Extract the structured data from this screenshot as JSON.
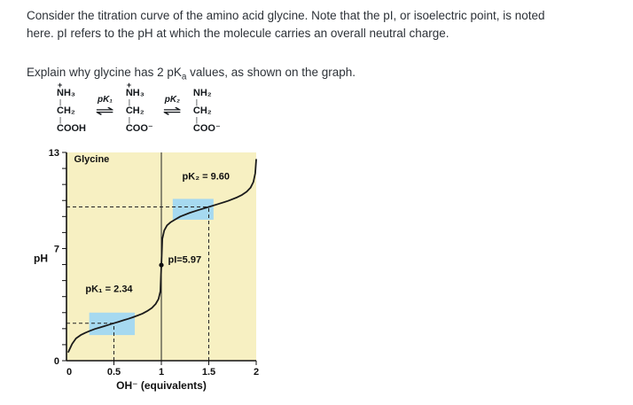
{
  "page": {
    "bg": "#ffffff",
    "text_color": "#2d3238"
  },
  "intro": {
    "paragraph": "Consider the titration curve of the amino acid glycine. Note that the pI, or isoelectric point, is noted here. pI refers to the pH at which the molecule carries an overall neutral charge.",
    "question_pre": "Explain why glycine has 2 pK",
    "question_sub": "a",
    "question_post": " values, as shown on the graph."
  },
  "reaction": {
    "equilibrium_symbol": "⇌",
    "structures": [
      {
        "charge": "+",
        "lines": [
          "NH₃",
          "CH₂",
          "COOH"
        ]
      },
      {
        "charge": "+",
        "lines": [
          "NH₃",
          "CH₂",
          "COO⁻"
        ]
      },
      {
        "charge": "",
        "lines": [
          "NH₂",
          "CH₂",
          "COO⁻"
        ]
      }
    ],
    "arrows": [
      {
        "label": "pK₁"
      },
      {
        "label": "pK₂"
      }
    ]
  },
  "chart_data": {
    "type": "line",
    "title": "Glycine",
    "xlabel": "OH⁻  (equivalents)",
    "ylabel": "pH",
    "xlim": [
      0,
      2
    ],
    "ylim": [
      0,
      13
    ],
    "x_ticks": [
      0,
      0.5,
      1,
      1.5,
      2
    ],
    "x_tick_labels": [
      "0",
      "0.5",
      "1",
      "1.5",
      "2"
    ],
    "y_tick_labels": [
      {
        "value": 0,
        "label": "0"
      },
      {
        "value": 7,
        "label": "7"
      },
      {
        "value": 13,
        "label": "13"
      }
    ],
    "pK1": 2.34,
    "pK2": 9.6,
    "pI": 5.97,
    "bg_color": "#f7f0c2",
    "buffer_region_color": "#a6d9f0",
    "curve_color": "#1b1b1b",
    "curve": [
      [
        0.02,
        0.55
      ],
      [
        0.06,
        1.05
      ],
      [
        0.1,
        1.39
      ],
      [
        0.15,
        1.6
      ],
      [
        0.2,
        1.75
      ],
      [
        0.25,
        1.87
      ],
      [
        0.3,
        1.98
      ],
      [
        0.35,
        2.07
      ],
      [
        0.4,
        2.16
      ],
      [
        0.45,
        2.25
      ],
      [
        0.5,
        2.34
      ],
      [
        0.55,
        2.43
      ],
      [
        0.6,
        2.52
      ],
      [
        0.65,
        2.61
      ],
      [
        0.7,
        2.71
      ],
      [
        0.75,
        2.82
      ],
      [
        0.8,
        2.94
      ],
      [
        0.85,
        3.09
      ],
      [
        0.9,
        3.29
      ],
      [
        0.94,
        3.54
      ],
      [
        0.97,
        3.85
      ],
      [
        0.99,
        4.33
      ],
      [
        1.0,
        5.97
      ],
      [
        1.01,
        7.6
      ],
      [
        1.03,
        8.12
      ],
      [
        1.06,
        8.45
      ],
      [
        1.1,
        8.65
      ],
      [
        1.15,
        8.83
      ],
      [
        1.2,
        9.0
      ],
      [
        1.3,
        9.23
      ],
      [
        1.4,
        9.42
      ],
      [
        1.5,
        9.6
      ],
      [
        1.6,
        9.78
      ],
      [
        1.7,
        9.97
      ],
      [
        1.8,
        10.2
      ],
      [
        1.85,
        10.35
      ],
      [
        1.9,
        10.55
      ],
      [
        1.94,
        10.8
      ],
      [
        1.97,
        11.15
      ],
      [
        1.99,
        11.7
      ],
      [
        2.0,
        12.55
      ]
    ],
    "buffer_regions": [
      {
        "x0": 0.24,
        "x1": 0.72,
        "y0": 1.6,
        "y1": 3.0
      },
      {
        "x0": 1.12,
        "x1": 1.55,
        "y0": 8.8,
        "y1": 10.1
      }
    ],
    "dashed_lines": [
      {
        "type": "h",
        "y": 9.6,
        "x0": 0,
        "x1": 1.5
      },
      {
        "type": "h",
        "y": 2.34,
        "x0": 0,
        "x1": 0.5
      },
      {
        "type": "v",
        "x": 0.5,
        "y0": 0,
        "y1": 2.34
      },
      {
        "type": "v",
        "x": 1.5,
        "y0": 0,
        "y1": 9.6
      }
    ],
    "vline_x": 1,
    "pI_point": {
      "x": 1,
      "y": 5.97
    },
    "annotations": [
      {
        "text": "Glycine",
        "x": 0.08,
        "y": 12.4,
        "bold": true,
        "anchor": "start"
      },
      {
        "text": "pK₂ = 9.60",
        "x": 1.22,
        "y": 11.3,
        "bold": true,
        "anchor": "start"
      },
      {
        "text": "pI=5.97",
        "x": 1.07,
        "y": 6.1,
        "bold": true,
        "anchor": "start"
      },
      {
        "text": "pK₁ = 2.34",
        "x": 0.2,
        "y": 4.3,
        "bold": true,
        "anchor": "start"
      }
    ]
  }
}
